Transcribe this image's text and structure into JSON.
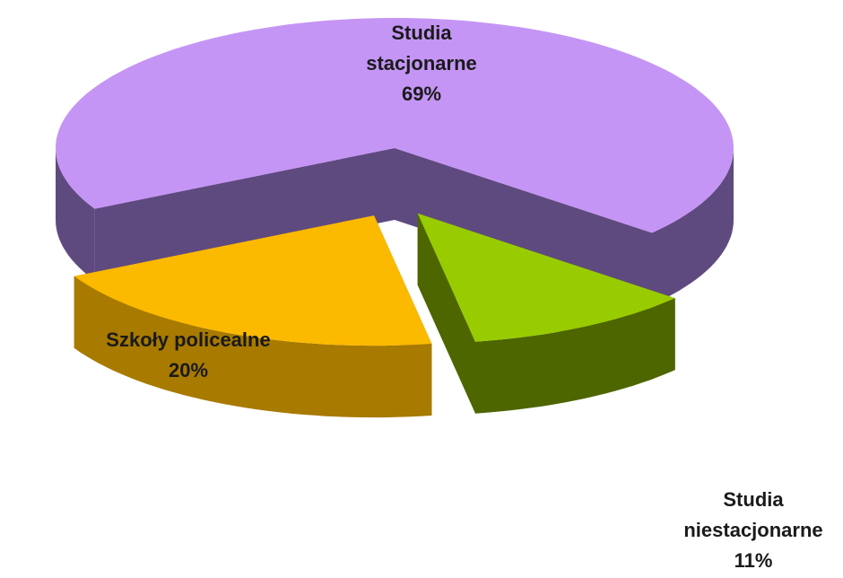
{
  "chart_data": {
    "type": "pie3d",
    "categories": [
      "Studia stacjonarne",
      "Studia niestacjonarne",
      "Szkoły policealne"
    ],
    "values": [
      69,
      11,
      20
    ],
    "value_labels": [
      "69%",
      "11%",
      "20%"
    ],
    "colors": [
      "#c595f5",
      "#99cc00",
      "#fbb900"
    ],
    "side_colors": [
      "#5f4a80",
      "#4d6600",
      "#a87a00"
    ]
  }
}
